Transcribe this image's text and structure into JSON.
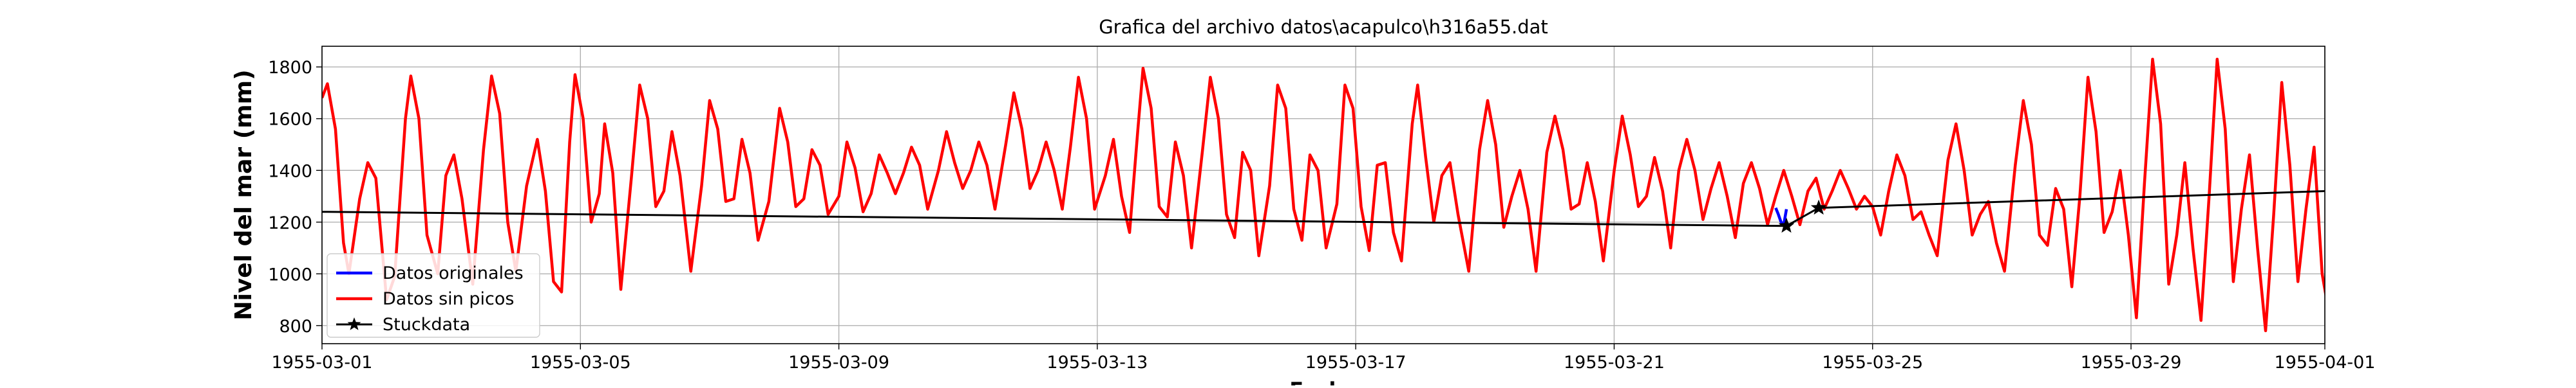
{
  "chart_data": {
    "type": "line",
    "title": "Grafica del archivo datos\\acapulco\\h316a55.dat",
    "xlabel": "Fecha",
    "ylabel": "Nivel del mar (mm)",
    "x_range": [
      "1955-03-01",
      "1955-04-01"
    ],
    "ylim": [
      730,
      1880
    ],
    "grid": true,
    "legend_position": "lower-left",
    "x_ticks": [
      "1955-03-01",
      "1955-03-05",
      "1955-03-09",
      "1955-03-13",
      "1955-03-17",
      "1955-03-21",
      "1955-03-25",
      "1955-03-29",
      "1955-04-01"
    ],
    "y_ticks": [
      800,
      1000,
      1200,
      1400,
      1600,
      1800
    ],
    "series": [
      {
        "name": "Datos originales",
        "color": "#0000ff",
        "points": [
          [
            "1955-03-23T12:00",
            1255
          ],
          [
            "1955-03-23T13:00",
            1230
          ],
          [
            "1955-03-23T14:00",
            1200
          ],
          [
            "1955-03-23T15:00",
            1190
          ],
          [
            "1955-03-23T16:00",
            1250
          ]
        ]
      },
      {
        "name": "Datos sin picos",
        "color": "#ff0000",
        "points": [
          [
            "1955-03-01T00:00",
            1680
          ],
          [
            "1955-03-01T02:00",
            1735
          ],
          [
            "1955-03-01T05:00",
            1560
          ],
          [
            "1955-03-01T08:00",
            1120
          ],
          [
            "1955-03-01T10:00",
            1000
          ],
          [
            "1955-03-01T14:00",
            1290
          ],
          [
            "1955-03-01T17:00",
            1430
          ],
          [
            "1955-03-01T20:00",
            1370
          ],
          [
            "1955-03-02T00:00",
            900
          ],
          [
            "1955-03-02T03:00",
            990
          ],
          [
            "1955-03-02T07:00",
            1600
          ],
          [
            "1955-03-02T09:00",
            1765
          ],
          [
            "1955-03-02T12:00",
            1600
          ],
          [
            "1955-03-02T15:00",
            1150
          ],
          [
            "1955-03-02T19:00",
            1000
          ],
          [
            "1955-03-02T22:00",
            1380
          ],
          [
            "1955-03-03T01:00",
            1460
          ],
          [
            "1955-03-03T04:00",
            1290
          ],
          [
            "1955-03-03T08:00",
            960
          ],
          [
            "1955-03-03T12:00",
            1480
          ],
          [
            "1955-03-03T15:00",
            1765
          ],
          [
            "1955-03-03T18:00",
            1620
          ],
          [
            "1955-03-03T21:00",
            1200
          ],
          [
            "1955-03-04T00:00",
            1010
          ],
          [
            "1955-03-04T04:00",
            1340
          ],
          [
            "1955-03-04T08:00",
            1520
          ],
          [
            "1955-03-04T11:00",
            1320
          ],
          [
            "1955-03-04T14:00",
            970
          ],
          [
            "1955-03-04T17:00",
            930
          ],
          [
            "1955-03-04T20:00",
            1510
          ],
          [
            "1955-03-04T22:00",
            1770
          ],
          [
            "1955-03-05T01:00",
            1600
          ],
          [
            "1955-03-05T04:00",
            1200
          ],
          [
            "1955-03-05T07:00",
            1310
          ],
          [
            "1955-03-05T09:00",
            1580
          ],
          [
            "1955-03-05T12:00",
            1390
          ],
          [
            "1955-03-05T15:00",
            940
          ],
          [
            "1955-03-05T19:00",
            1380
          ],
          [
            "1955-03-05T22:00",
            1730
          ],
          [
            "1955-03-06T01:00",
            1600
          ],
          [
            "1955-03-06T04:00",
            1260
          ],
          [
            "1955-03-06T07:00",
            1320
          ],
          [
            "1955-03-06T10:00",
            1550
          ],
          [
            "1955-03-06T13:00",
            1380
          ],
          [
            "1955-03-06T17:00",
            1010
          ],
          [
            "1955-03-06T21:00",
            1340
          ],
          [
            "1955-03-07T00:00",
            1670
          ],
          [
            "1955-03-07T03:00",
            1560
          ],
          [
            "1955-03-07T06:00",
            1280
          ],
          [
            "1955-03-07T09:00",
            1290
          ],
          [
            "1955-03-07T12:00",
            1520
          ],
          [
            "1955-03-07T15:00",
            1390
          ],
          [
            "1955-03-07T18:00",
            1130
          ],
          [
            "1955-03-07T22:00",
            1280
          ],
          [
            "1955-03-08T02:00",
            1640
          ],
          [
            "1955-03-08T05:00",
            1510
          ],
          [
            "1955-03-08T08:00",
            1260
          ],
          [
            "1955-03-08T11:00",
            1290
          ],
          [
            "1955-03-08T14:00",
            1480
          ],
          [
            "1955-03-08T17:00",
            1420
          ],
          [
            "1955-03-08T20:00",
            1230
          ],
          [
            "1955-03-09T00:00",
            1300
          ],
          [
            "1955-03-09T03:00",
            1510
          ],
          [
            "1955-03-09T06:00",
            1410
          ],
          [
            "1955-03-09T09:00",
            1240
          ],
          [
            "1955-03-09T12:00",
            1310
          ],
          [
            "1955-03-09T15:00",
            1460
          ],
          [
            "1955-03-09T18:00",
            1390
          ],
          [
            "1955-03-09T21:00",
            1310
          ],
          [
            "1955-03-10T00:00",
            1390
          ],
          [
            "1955-03-10T03:00",
            1490
          ],
          [
            "1955-03-10T06:00",
            1420
          ],
          [
            "1955-03-10T09:00",
            1250
          ],
          [
            "1955-03-10T13:00",
            1400
          ],
          [
            "1955-03-10T16:00",
            1550
          ],
          [
            "1955-03-10T19:00",
            1430
          ],
          [
            "1955-03-10T22:00",
            1330
          ],
          [
            "1955-03-11T01:00",
            1400
          ],
          [
            "1955-03-11T04:00",
            1510
          ],
          [
            "1955-03-11T07:00",
            1420
          ],
          [
            "1955-03-11T10:00",
            1250
          ],
          [
            "1955-03-11T14:00",
            1500
          ],
          [
            "1955-03-11T17:00",
            1700
          ],
          [
            "1955-03-11T20:00",
            1560
          ],
          [
            "1955-03-11T23:00",
            1330
          ],
          [
            "1955-03-12T02:00",
            1400
          ],
          [
            "1955-03-12T05:00",
            1510
          ],
          [
            "1955-03-12T08:00",
            1400
          ],
          [
            "1955-03-12T11:00",
            1250
          ],
          [
            "1955-03-12T14:00",
            1490
          ],
          [
            "1955-03-12T17:00",
            1760
          ],
          [
            "1955-03-12T20:00",
            1600
          ],
          [
            "1955-03-12T23:00",
            1250
          ],
          [
            "1955-03-13T03:00",
            1380
          ],
          [
            "1955-03-13T06:00",
            1520
          ],
          [
            "1955-03-13T09:00",
            1300
          ],
          [
            "1955-03-13T12:00",
            1160
          ],
          [
            "1955-03-13T15:00",
            1550
          ],
          [
            "1955-03-13T17:00",
            1795
          ],
          [
            "1955-03-13T20:00",
            1640
          ],
          [
            "1955-03-13T23:00",
            1260
          ],
          [
            "1955-03-14T02:00",
            1220
          ],
          [
            "1955-03-14T05:00",
            1510
          ],
          [
            "1955-03-14T08:00",
            1380
          ],
          [
            "1955-03-14T11:00",
            1100
          ],
          [
            "1955-03-14T15:00",
            1470
          ],
          [
            "1955-03-14T18:00",
            1760
          ],
          [
            "1955-03-14T21:00",
            1600
          ],
          [
            "1955-03-15T00:00",
            1230
          ],
          [
            "1955-03-15T03:00",
            1140
          ],
          [
            "1955-03-15T06:00",
            1470
          ],
          [
            "1955-03-15T09:00",
            1400
          ],
          [
            "1955-03-15T12:00",
            1070
          ],
          [
            "1955-03-15T16:00",
            1340
          ],
          [
            "1955-03-15T19:00",
            1730
          ],
          [
            "1955-03-15T22:00",
            1640
          ],
          [
            "1955-03-16T01:00",
            1250
          ],
          [
            "1955-03-16T04:00",
            1130
          ],
          [
            "1955-03-16T07:00",
            1460
          ],
          [
            "1955-03-16T10:00",
            1400
          ],
          [
            "1955-03-16T13:00",
            1100
          ],
          [
            "1955-03-16T17:00",
            1270
          ],
          [
            "1955-03-16T20:00",
            1730
          ],
          [
            "1955-03-16T23:00",
            1640
          ],
          [
            "1955-03-17T02:00",
            1260
          ],
          [
            "1955-03-17T05:00",
            1090
          ],
          [
            "1955-03-17T08:00",
            1420
          ],
          [
            "1955-03-17T11:00",
            1430
          ],
          [
            "1955-03-17T14:00",
            1160
          ],
          [
            "1955-03-17T17:00",
            1050
          ],
          [
            "1955-03-17T21:00",
            1580
          ],
          [
            "1955-03-17T23:00",
            1730
          ],
          [
            "1955-03-18T02:00",
            1450
          ],
          [
            "1955-03-18T05:00",
            1200
          ],
          [
            "1955-03-18T08:00",
            1380
          ],
          [
            "1955-03-18T11:00",
            1430
          ],
          [
            "1955-03-18T14:00",
            1230
          ],
          [
            "1955-03-18T18:00",
            1010
          ],
          [
            "1955-03-18T22:00",
            1480
          ],
          [
            "1955-03-19T01:00",
            1670
          ],
          [
            "1955-03-19T04:00",
            1500
          ],
          [
            "1955-03-19T07:00",
            1180
          ],
          [
            "1955-03-19T10:00",
            1300
          ],
          [
            "1955-03-19T13:00",
            1400
          ],
          [
            "1955-03-19T16:00",
            1250
          ],
          [
            "1955-03-19T19:00",
            1010
          ],
          [
            "1955-03-19T23:00",
            1470
          ],
          [
            "1955-03-20T02:00",
            1610
          ],
          [
            "1955-03-20T05:00",
            1480
          ],
          [
            "1955-03-20T08:00",
            1250
          ],
          [
            "1955-03-20T11:00",
            1270
          ],
          [
            "1955-03-20T14:00",
            1430
          ],
          [
            "1955-03-20T17:00",
            1280
          ],
          [
            "1955-03-20T20:00",
            1050
          ],
          [
            "1955-03-21T00:00",
            1400
          ],
          [
            "1955-03-21T03:00",
            1610
          ],
          [
            "1955-03-21T06:00",
            1460
          ],
          [
            "1955-03-21T09:00",
            1260
          ],
          [
            "1955-03-21T12:00",
            1300
          ],
          [
            "1955-03-21T15:00",
            1450
          ],
          [
            "1955-03-21T18:00",
            1320
          ],
          [
            "1955-03-21T21:00",
            1100
          ],
          [
            "1955-03-22T00:00",
            1400
          ],
          [
            "1955-03-22T03:00",
            1520
          ],
          [
            "1955-03-22T06:00",
            1400
          ],
          [
            "1955-03-22T09:00",
            1210
          ],
          [
            "1955-03-22T12:00",
            1330
          ],
          [
            "1955-03-22T15:00",
            1430
          ],
          [
            "1955-03-22T18:00",
            1300
          ],
          [
            "1955-03-22T21:00",
            1140
          ],
          [
            "1955-03-23T00:00",
            1350
          ],
          [
            "1955-03-23T03:00",
            1430
          ],
          [
            "1955-03-23T06:00",
            1330
          ],
          [
            "1955-03-23T09:00",
            1190
          ],
          [
            "1955-03-23T12:00",
            1300
          ],
          [
            "1955-03-23T15:00",
            1400
          ],
          [
            "1955-03-23T18:00",
            1300
          ],
          [
            "1955-03-23T21:00",
            1190
          ],
          [
            "1955-03-24T00:00",
            1320
          ],
          [
            "1955-03-24T03:00",
            1370
          ],
          [
            "1955-03-24T06:00",
            1250
          ],
          [
            "1955-03-24T09:00",
            1320
          ],
          [
            "1955-03-24T12:00",
            1400
          ],
          [
            "1955-03-24T15:00",
            1330
          ],
          [
            "1955-03-24T18:00",
            1250
          ],
          [
            "1955-03-24T21:00",
            1300
          ],
          [
            "1955-03-25T00:00",
            1260
          ],
          [
            "1955-03-25T03:00",
            1150
          ],
          [
            "1955-03-25T06:00",
            1320
          ],
          [
            "1955-03-25T09:00",
            1460
          ],
          [
            "1955-03-25T12:00",
            1380
          ],
          [
            "1955-03-25T15:00",
            1210
          ],
          [
            "1955-03-25T18:00",
            1240
          ],
          [
            "1955-03-25T21:00",
            1150
          ],
          [
            "1955-03-26T00:00",
            1070
          ],
          [
            "1955-03-26T04:00",
            1440
          ],
          [
            "1955-03-26T07:00",
            1580
          ],
          [
            "1955-03-26T10:00",
            1400
          ],
          [
            "1955-03-26T13:00",
            1150
          ],
          [
            "1955-03-26T16:00",
            1230
          ],
          [
            "1955-03-26T19:00",
            1280
          ],
          [
            "1955-03-26T22:00",
            1120
          ],
          [
            "1955-03-27T01:00",
            1010
          ],
          [
            "1955-03-27T05:00",
            1420
          ],
          [
            "1955-03-27T08:00",
            1670
          ],
          [
            "1955-03-27T11:00",
            1500
          ],
          [
            "1955-03-27T14:00",
            1150
          ],
          [
            "1955-03-27T17:00",
            1110
          ],
          [
            "1955-03-27T20:00",
            1330
          ],
          [
            "1955-03-27T23:00",
            1250
          ],
          [
            "1955-03-28T02:00",
            950
          ],
          [
            "1955-03-28T05:00",
            1300
          ],
          [
            "1955-03-28T08:00",
            1760
          ],
          [
            "1955-03-28T11:00",
            1550
          ],
          [
            "1955-03-28T14:00",
            1160
          ],
          [
            "1955-03-28T17:00",
            1240
          ],
          [
            "1955-03-28T20:00",
            1400
          ],
          [
            "1955-03-28T23:00",
            1150
          ],
          [
            "1955-03-29T02:00",
            830
          ],
          [
            "1955-03-29T05:00",
            1350
          ],
          [
            "1955-03-29T08:00",
            1830
          ],
          [
            "1955-03-29T11:00",
            1580
          ],
          [
            "1955-03-29T14:00",
            960
          ],
          [
            "1955-03-29T17:00",
            1150
          ],
          [
            "1955-03-29T20:00",
            1430
          ],
          [
            "1955-03-29T23:00",
            1100
          ],
          [
            "1955-03-30T02:00",
            820
          ],
          [
            "1955-03-30T05:00",
            1300
          ],
          [
            "1955-03-30T08:00",
            1830
          ],
          [
            "1955-03-30T11:00",
            1560
          ],
          [
            "1955-03-30T14:00",
            970
          ],
          [
            "1955-03-30T17:00",
            1250
          ],
          [
            "1955-03-30T20:00",
            1460
          ],
          [
            "1955-03-30T23:00",
            1100
          ],
          [
            "1955-03-31T02:00",
            780
          ],
          [
            "1955-03-31T05:00",
            1230
          ],
          [
            "1955-03-31T08:00",
            1740
          ],
          [
            "1955-03-31T11:00",
            1420
          ],
          [
            "1955-03-31T14:00",
            970
          ],
          [
            "1955-03-31T17:00",
            1250
          ],
          [
            "1955-03-31T20:00",
            1490
          ],
          [
            "1955-03-31T23:00",
            1000
          ],
          [
            "1955-04-01T01:00",
            880
          ]
        ]
      },
      {
        "name": "Stuckdata",
        "color": "#000000",
        "marker": "star",
        "points": [
          [
            "1955-03-01T00:00",
            1240
          ],
          [
            "1955-03-23T16:00",
            1185
          ],
          [
            "1955-03-24T04:00",
            1255
          ],
          [
            "1955-04-01T00:00",
            1320
          ]
        ],
        "marker_points": [
          [
            "1955-03-23T16:00",
            1185
          ],
          [
            "1955-03-24T04:00",
            1255
          ]
        ]
      }
    ]
  }
}
